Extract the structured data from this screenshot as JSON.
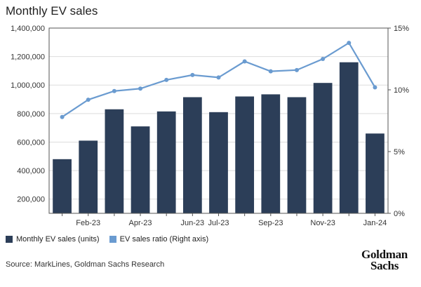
{
  "title": "Monthly EV sales",
  "source": "Source: MarkLines, Goldman Sachs Research",
  "logo_lines": [
    "Goldman",
    "Sachs"
  ],
  "colors": {
    "bar": "#2c3e58",
    "line": "#6a9bd0",
    "grid": "#dddddd",
    "axis": "#555555"
  },
  "chart_data": {
    "type": "bar+line",
    "categories": [
      "Jan-23",
      "Feb-23",
      "Mar-23",
      "Apr-23",
      "May-23",
      "Jun-23",
      "Jul-23",
      "Aug-23",
      "Sep-23",
      "Oct-23",
      "Nov-23",
      "Dec-23",
      "Jan-24"
    ],
    "x_tick_labels": [
      "",
      "Feb-23",
      "",
      "Apr-23",
      "",
      "Jun-23",
      "Jul-23",
      "",
      "Sep-23",
      "",
      "Nov-23",
      "",
      "Jan-24"
    ],
    "series": [
      {
        "name": "Monthly EV sales (units)",
        "type": "bar",
        "axis": "left",
        "values": [
          480000,
          610000,
          830000,
          710000,
          815000,
          915000,
          810000,
          920000,
          935000,
          915000,
          1015000,
          1160000,
          660000
        ]
      },
      {
        "name": "EV sales ratio (Right axis)",
        "type": "line",
        "axis": "right",
        "values": [
          7.8,
          9.2,
          9.9,
          10.1,
          10.8,
          11.2,
          11.0,
          12.3,
          11.5,
          11.6,
          12.5,
          13.8,
          10.2
        ]
      }
    ],
    "y_left": {
      "min": 100000,
      "max": 1400000,
      "ticks": [
        200000,
        400000,
        600000,
        800000,
        1000000,
        1200000,
        1400000
      ],
      "tick_labels": [
        "200,000",
        "400,000",
        "600,000",
        "800,000",
        "1,000,000",
        "1,200,000",
        "1,400,000"
      ]
    },
    "y_right": {
      "min": 0,
      "max": 15,
      "ticks": [
        0,
        5,
        10,
        15
      ],
      "tick_labels": [
        "0%",
        "5%",
        "10%",
        "15%"
      ]
    },
    "grid": true,
    "legend": {
      "position": "bottom-left",
      "entries": [
        "Monthly EV sales (units)",
        "EV sales ratio (Right axis)"
      ]
    }
  }
}
